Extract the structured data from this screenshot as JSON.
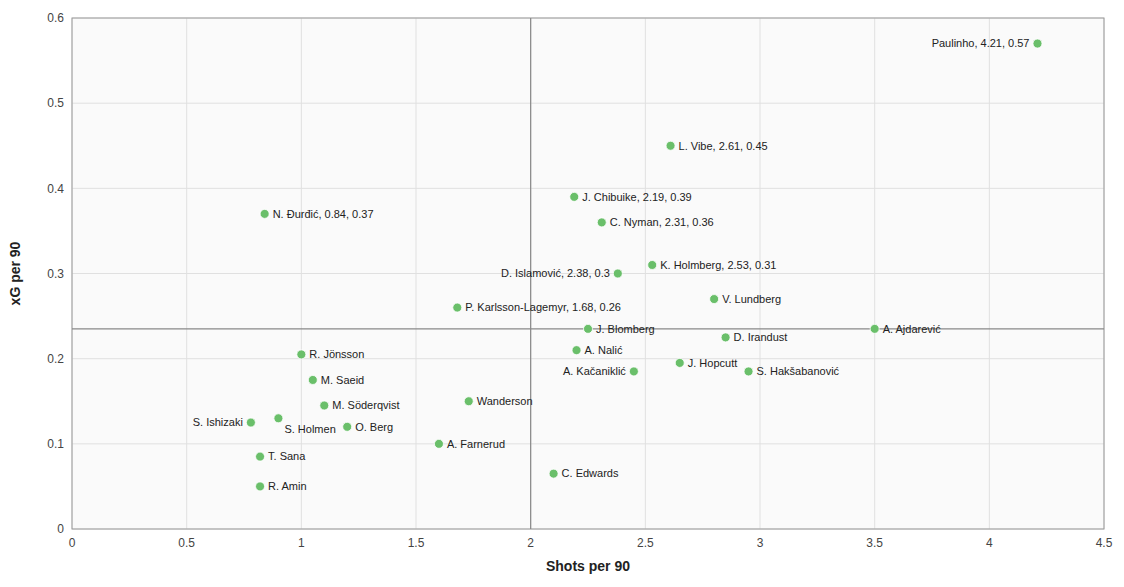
{
  "chart_data": {
    "type": "scatter",
    "xlabel": "Shots per 90",
    "ylabel": "xG per 90",
    "xlim": [
      0,
      4.5
    ],
    "ylim": [
      0,
      0.6
    ],
    "xticks": [
      0,
      0.5,
      1,
      1.5,
      2,
      2.5,
      3,
      3.5,
      4,
      4.5
    ],
    "yticks": [
      0,
      0.1,
      0.2,
      0.3,
      0.4,
      0.5,
      0.6
    ],
    "grid": true,
    "color": "#6abf6a",
    "median_x": 2.0,
    "median_y": 0.235,
    "x": [
      4.21,
      2.61,
      2.19,
      2.31,
      2.53,
      0.84,
      2.38,
      1.68,
      2.8,
      2.25,
      3.5,
      2.85,
      2.2,
      2.65,
      2.45,
      2.95,
      1.0,
      1.05,
      1.1,
      0.9,
      0.78,
      1.2,
      1.73,
      1.6,
      0.82,
      0.82,
      2.1
    ],
    "values": [
      0.57,
      0.45,
      0.39,
      0.36,
      0.31,
      0.37,
      0.3,
      0.26,
      0.27,
      0.235,
      0.235,
      0.225,
      0.21,
      0.195,
      0.185,
      0.185,
      0.205,
      0.175,
      0.145,
      0.13,
      0.125,
      0.12,
      0.15,
      0.1,
      0.085,
      0.05,
      0.065
    ],
    "labels": [
      "Paulinho, 4.21, 0.57",
      "L. Vibe, 2.61, 0.45",
      "J. Chibuike, 2.19, 0.39",
      "C. Nyman, 2.31, 0.36",
      "K. Holmberg, 2.53, 0.31",
      "N. Đurđić, 0.84, 0.37",
      "D. Islamović, 2.38, 0.3",
      "P. Karlsson-Lagemyr, 1.68, 0.26",
      "V. Lundberg",
      "J. Blomberg",
      "A. Ajdarević",
      "D. Irandust",
      "A. Nalić",
      "J. Hopcutt",
      "A. Kačaniklić",
      "S. Hakšabanović",
      "R. Jönsson",
      "M. Saeid",
      "M. Söderqvist",
      "S. Holmen",
      "S. Ishizaki",
      "O. Berg",
      "Wanderson",
      "A. Farnerud",
      "T. Sana",
      "R. Amin",
      "C. Edwards"
    ]
  }
}
